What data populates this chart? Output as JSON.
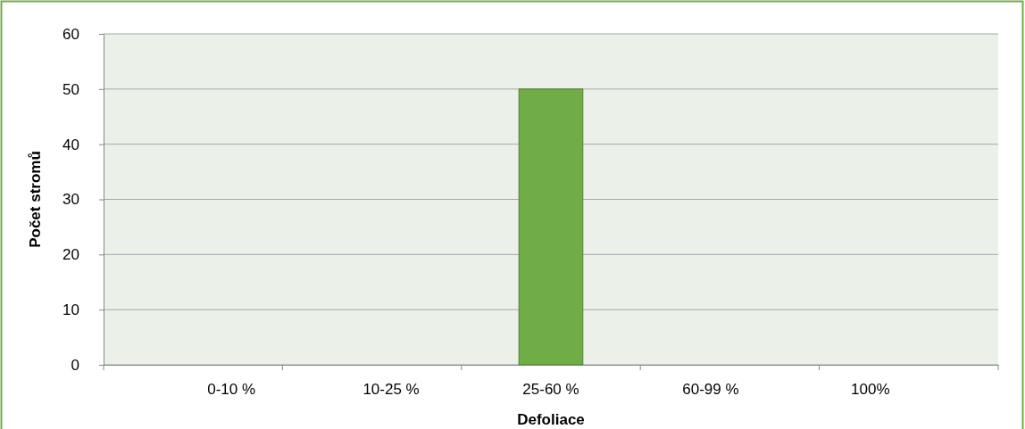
{
  "chart_data": {
    "type": "bar",
    "xlabel": "Defoliace",
    "ylabel": "Počet stromů",
    "categories": [
      "0-10 %",
      "10-25 %",
      "25-60 %",
      "60-99 %",
      "100%"
    ],
    "values": [
      0,
      0,
      50,
      0,
      0
    ],
    "color": "#70ad47",
    "ylim": [
      0,
      60
    ],
    "yticks": [
      0,
      10,
      20,
      30,
      40,
      50,
      60
    ],
    "grid": "y"
  }
}
